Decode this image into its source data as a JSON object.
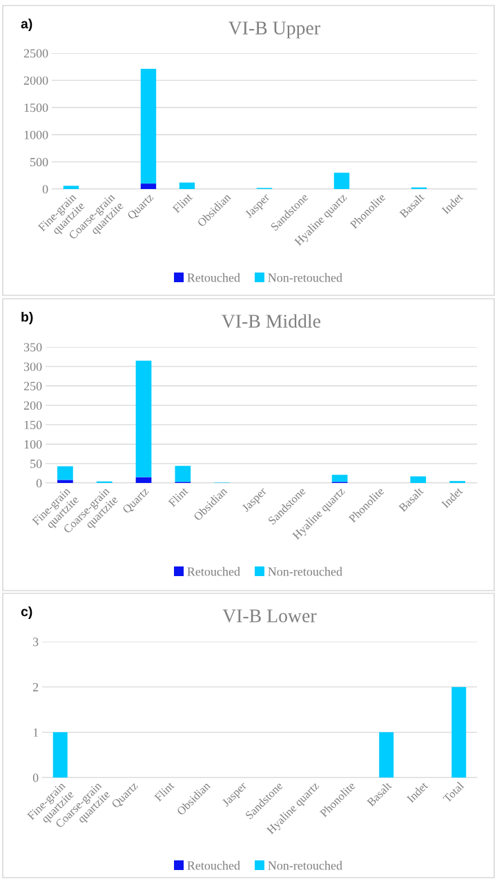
{
  "chart_data": [
    {
      "type": "bar",
      "title": "VI-B Upper",
      "annotations": [
        "a)"
      ],
      "stacked": true,
      "legend": "bottom",
      "grid": "y",
      "categories": [
        "Fine-grain\nquartzite",
        "Coarse-grain\nquartzite",
        "Quartz",
        "Flint",
        "Obsidian",
        "Jasper",
        "Sandstone",
        "Hyaline quartz",
        "Phonolite",
        "Basalt",
        "Indet"
      ],
      "ylim": [
        0,
        2500
      ],
      "yticks": [
        0,
        500,
        1000,
        1500,
        2000,
        2500
      ],
      "series": [
        {
          "name": "Retouched",
          "color": "#0a14f0",
          "values": [
            0,
            0,
            100,
            0,
            0,
            0,
            0,
            0,
            0,
            0,
            0
          ]
        },
        {
          "name": "Non-retouched",
          "color": "#00ccff",
          "values": [
            60,
            0,
            2110,
            120,
            0,
            20,
            0,
            300,
            0,
            30,
            0
          ]
        }
      ]
    },
    {
      "type": "bar",
      "title": "VI-B Middle",
      "annotations": [
        "b)"
      ],
      "stacked": true,
      "legend": "bottom",
      "grid": "y",
      "categories": [
        "Fine-grain\nquartzite",
        "Coarse-grain\nquartzite",
        "Quartz",
        "Flint",
        "Obsidian",
        "Jasper",
        "Sandstone",
        "Hyaline quartz",
        "Phonolite",
        "Basalt",
        "Indet"
      ],
      "ylim": [
        0,
        350
      ],
      "yticks": [
        0,
        50,
        100,
        150,
        200,
        250,
        300,
        350
      ],
      "series": [
        {
          "name": "Retouched",
          "color": "#0a14f0",
          "values": [
            8,
            0,
            15,
            3,
            0,
            0,
            0,
            3,
            0,
            0,
            0
          ]
        },
        {
          "name": "Non-retouched",
          "color": "#00ccff",
          "values": [
            35,
            4,
            300,
            41,
            1,
            0,
            0,
            18,
            0,
            17,
            5
          ]
        }
      ]
    },
    {
      "type": "bar",
      "title": "VI-B Lower",
      "annotations": [
        "c)"
      ],
      "stacked": true,
      "legend": "bottom",
      "grid": "y",
      "categories": [
        "Fine-grain\nquartzite",
        "Coarse-grain\nquartzite",
        "Quartz",
        "Flint",
        "Obsidian",
        "Jasper",
        "Sandstone",
        "Hyaline quartz",
        "Phonolite",
        "Basalt",
        "Indet",
        "Total"
      ],
      "ylim": [
        0,
        3
      ],
      "yticks": [
        0,
        1,
        2,
        3
      ],
      "series": [
        {
          "name": "Retouched",
          "color": "#0a14f0",
          "values": [
            0,
            0,
            0,
            0,
            0,
            0,
            0,
            0,
            0,
            0,
            0,
            0
          ]
        },
        {
          "name": "Non-retouched",
          "color": "#00ccff",
          "values": [
            1,
            0,
            0,
            0,
            0,
            0,
            0,
            0,
            0,
            1,
            0,
            2
          ]
        }
      ]
    }
  ]
}
